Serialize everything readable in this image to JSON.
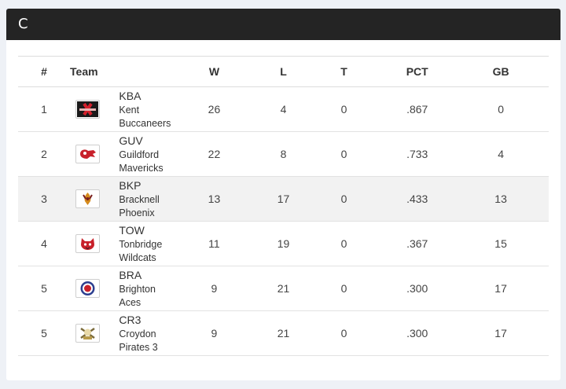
{
  "header": {
    "title": "C"
  },
  "table": {
    "columns": {
      "rank": "#",
      "team": "Team",
      "w": "W",
      "l": "L",
      "t": "T",
      "pct": "PCT",
      "gb": "GB"
    },
    "rows": [
      {
        "rank": "1",
        "abbr": "KBA",
        "name": "Kent Buccaneers",
        "w": "26",
        "l": "4",
        "t": "0",
        "pct": ".867",
        "gb": "0",
        "logo": "buccaneers-logo-icon"
      },
      {
        "rank": "2",
        "abbr": "GUV",
        "name": "Guildford Mavericks",
        "w": "22",
        "l": "8",
        "t": "0",
        "pct": ".733",
        "gb": "4",
        "logo": "mavericks-logo-icon"
      },
      {
        "rank": "3",
        "abbr": "BKP",
        "name": "Bracknell Phoenix",
        "w": "13",
        "l": "17",
        "t": "0",
        "pct": ".433",
        "gb": "13",
        "logo": "phoenix-logo-icon"
      },
      {
        "rank": "4",
        "abbr": "TOW",
        "name": "Tonbridge Wildcats",
        "w": "11",
        "l": "19",
        "t": "0",
        "pct": ".367",
        "gb": "15",
        "logo": "wildcats-logo-icon"
      },
      {
        "rank": "5",
        "abbr": "BRA",
        "name": "Brighton Aces",
        "w": "9",
        "l": "21",
        "t": "0",
        "pct": ".300",
        "gb": "17",
        "logo": "aces-logo-icon"
      },
      {
        "rank": "5",
        "abbr": "CR3",
        "name": "Croydon Pirates 3",
        "w": "9",
        "l": "21",
        "t": "0",
        "pct": ".300",
        "gb": "17",
        "logo": "pirates-logo-icon"
      }
    ]
  },
  "colors": {
    "header_bg": "#242424",
    "highlight_row": "#f2f2f2",
    "page_bg": "#eef1f6"
  }
}
